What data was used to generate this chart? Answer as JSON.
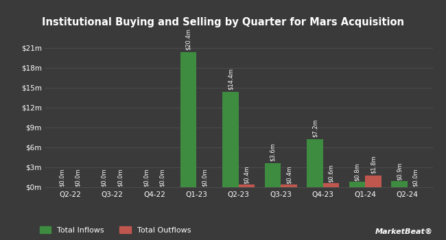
{
  "title": "Institutional Buying and Selling by Quarter for Mars Acquisition",
  "quarters": [
    "Q2-22",
    "Q3-22",
    "Q4-22",
    "Q1-23",
    "Q2-23",
    "Q3-23",
    "Q4-23",
    "Q1-24",
    "Q2-24"
  ],
  "inflows": [
    0.0,
    0.0,
    0.0,
    20.4,
    14.4,
    3.6,
    7.2,
    0.8,
    0.9
  ],
  "outflows": [
    0.0,
    0.0,
    0.0,
    0.0,
    0.4,
    0.4,
    0.6,
    1.8,
    0.0
  ],
  "inflow_labels": [
    "$0.0m",
    "$0.0m",
    "$0.0m",
    "$20.4m",
    "$14.4m",
    "$3.6m",
    "$7.2m",
    "$0.8m",
    "$0.9m"
  ],
  "outflow_labels": [
    "$0.0m",
    "$0.0m",
    "$0.0m",
    "$0.0m",
    "$0.4m",
    "$0.4m",
    "$0.6m",
    "$1.8m",
    "$0.0m"
  ],
  "inflow_color": "#3d8c40",
  "outflow_color": "#c0574f",
  "background_color": "#3a3a3a",
  "text_color": "#ffffff",
  "grid_color": "#4d4d4d",
  "yticks": [
    0,
    3,
    6,
    9,
    12,
    15,
    18,
    21
  ],
  "ytick_labels": [
    "$0m",
    "$3m",
    "$6m",
    "$9m",
    "$12m",
    "$15m",
    "$18m",
    "$21m"
  ],
  "ylim": [
    0,
    23.5
  ],
  "bar_width": 0.38,
  "legend_inflow": "Total Inflows",
  "legend_outflow": "Total Outflows"
}
